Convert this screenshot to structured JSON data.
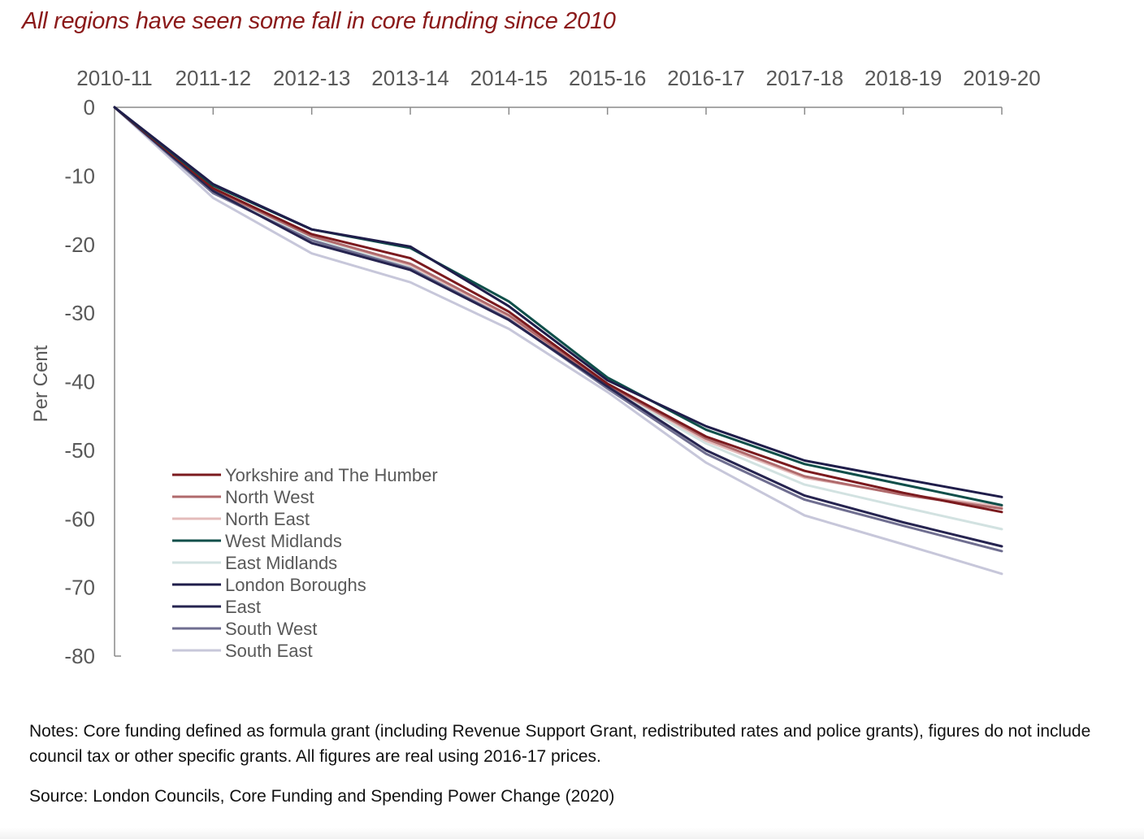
{
  "title": "All regions have seen some fall in core funding since 2010",
  "chart_data": {
    "type": "line",
    "title": "All regions have seen some fall in core funding since 2010",
    "xlabel": "",
    "ylabel": "Per Cent",
    "x_axis_position": "top",
    "ylim": [
      -80,
      0
    ],
    "yticks": [
      "0",
      "-10",
      "-20",
      "-30",
      "-40",
      "-50",
      "-60",
      "-70",
      "-80"
    ],
    "grid": false,
    "legend_position": "bottom-left",
    "categories": [
      "2010-11",
      "2011-12",
      "2012-13",
      "2013-14",
      "2014-15",
      "2015-16",
      "2016-17",
      "2017-18",
      "2018-19",
      "2019-20"
    ],
    "series": [
      {
        "name": "Yorkshire and The Humber",
        "color": "#7b1a1e",
        "values": [
          0,
          -11.8,
          -18.5,
          -22,
          -29.8,
          -40.3,
          -48,
          -53,
          -56.2,
          -59
        ]
      },
      {
        "name": "North West",
        "color": "#b06a6c",
        "values": [
          0,
          -12,
          -18.8,
          -22.8,
          -30.3,
          -40.5,
          -48.3,
          -53.8,
          -56.5,
          -58.5
        ]
      },
      {
        "name": "North East",
        "color": "#e4bcbb",
        "values": [
          0,
          -12,
          -18.8,
          -23,
          -30.5,
          -40.5,
          -48.6,
          -54,
          -56.4,
          -58.2
        ]
      },
      {
        "name": "West Midlands",
        "color": "#0f4f4a",
        "values": [
          0,
          -11.4,
          -17.8,
          -20.5,
          -28.3,
          -39.4,
          -47,
          -52,
          -55,
          -58
        ]
      },
      {
        "name": "East Midlands",
        "color": "#d2e2e1",
        "values": [
          0,
          -12.1,
          -19,
          -23.2,
          -30.8,
          -40.8,
          -49,
          -55,
          -58.3,
          -61.5
        ]
      },
      {
        "name": "London Boroughs",
        "color": "#1f1d4a",
        "values": [
          0,
          -11.2,
          -17.8,
          -20.3,
          -29,
          -39.8,
          -46.5,
          -51.5,
          -54.2,
          -56.8
        ]
      },
      {
        "name": "East",
        "color": "#262450",
        "values": [
          0,
          -12.2,
          -19.8,
          -23.7,
          -31,
          -40.7,
          -50,
          -56.6,
          -60.5,
          -64
        ]
      },
      {
        "name": "South West",
        "color": "#6f6e90",
        "values": [
          0,
          -12.5,
          -19.4,
          -23.5,
          -30.9,
          -41,
          -50.5,
          -57.2,
          -61,
          -64.7
        ]
      },
      {
        "name": "South East",
        "color": "#c7c7da",
        "values": [
          0,
          -13.2,
          -21.3,
          -25.5,
          -32.3,
          -41.5,
          -51.8,
          -59.5,
          -63.7,
          -68
        ]
      }
    ]
  },
  "notes": "Notes: Core funding defined as formula grant (including Revenue Support Grant, redistributed rates and police grants), figures do not include council tax or other specific grants. All figures are real using 2016-17 prices.",
  "source": "Source: London Councils, Core Funding and Spending Power Change (2020)"
}
